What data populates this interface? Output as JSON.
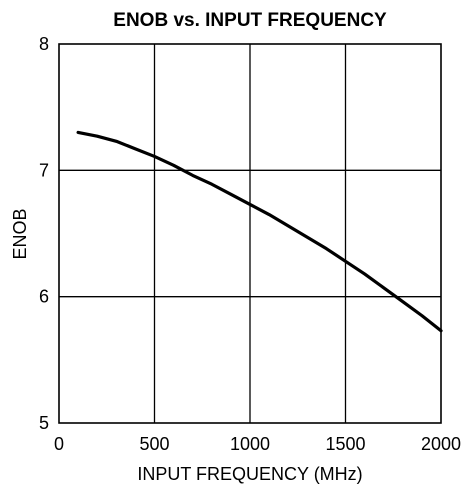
{
  "chart_data": {
    "type": "line",
    "title": "ENOB vs. INPUT FREQUENCY",
    "xlabel": "INPUT FREQUENCY (MHz)",
    "ylabel": "ENOB",
    "xlim": [
      0,
      2000
    ],
    "ylim": [
      5,
      8
    ],
    "xticks": [
      "0",
      "500",
      "1000",
      "1500",
      "2000"
    ],
    "yticks": [
      "5",
      "6",
      "7",
      "8"
    ],
    "grid": true,
    "series": [
      {
        "x": [
          100,
          200,
          300,
          400,
          500,
          600,
          700,
          800,
          900,
          1000,
          1100,
          1200,
          1300,
          1400,
          1500,
          1600,
          1700,
          1800,
          1900,
          2000
        ],
        "y": [
          7.3,
          7.27,
          7.23,
          7.17,
          7.11,
          7.04,
          6.96,
          6.89,
          6.81,
          6.73,
          6.65,
          6.56,
          6.47,
          6.38,
          6.28,
          6.18,
          6.07,
          5.96,
          5.85,
          5.73
        ]
      }
    ]
  }
}
